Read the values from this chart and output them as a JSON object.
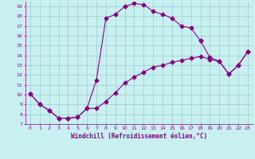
{
  "xlabel": "Windchill (Refroidissement éolien,°C)",
  "xlim": [
    -0.5,
    23.5
  ],
  "ylim": [
    7,
    19.5
  ],
  "xticks": [
    0,
    1,
    2,
    3,
    4,
    5,
    6,
    7,
    8,
    9,
    10,
    11,
    12,
    13,
    14,
    15,
    16,
    17,
    18,
    19,
    20,
    21,
    22,
    23
  ],
  "yticks": [
    7,
    8,
    9,
    10,
    11,
    12,
    13,
    14,
    15,
    16,
    17,
    18,
    19
  ],
  "bg_color": "#c8f0f0",
  "line_color": "#880088",
  "grid_color": "#99cccc",
  "line1_x": [
    0,
    1,
    2,
    3,
    4,
    5,
    6,
    7,
    8,
    9,
    10,
    11,
    12,
    13,
    14,
    15,
    16,
    17,
    18
  ],
  "line1_y": [
    10.1,
    9.0,
    8.4,
    7.6,
    7.6,
    7.7,
    8.6,
    11.5,
    17.8,
    18.2,
    19.0,
    19.3,
    19.2,
    18.5,
    18.2,
    17.8,
    17.0,
    16.8,
    15.5
  ],
  "line2_x": [
    0,
    1,
    2,
    3,
    4,
    5,
    6,
    7,
    8,
    9,
    10,
    11,
    12,
    13,
    14,
    15,
    16,
    17,
    18,
    19,
    20,
    21,
    22,
    23
  ],
  "line2_y": [
    10.1,
    9.0,
    8.4,
    7.6,
    7.6,
    7.7,
    8.6,
    8.6,
    9.3,
    10.2,
    11.2,
    11.8,
    12.3,
    12.8,
    13.0,
    13.3,
    13.5,
    13.7,
    13.9,
    13.6,
    13.4,
    12.1,
    13.0,
    14.4
  ],
  "line3_x": [
    18,
    19,
    20,
    21,
    22,
    23
  ],
  "line3_y": [
    15.5,
    13.8,
    13.4,
    12.1,
    13.0,
    14.4
  ],
  "marker": "D",
  "markersize": 2.5,
  "linewidth": 0.8
}
